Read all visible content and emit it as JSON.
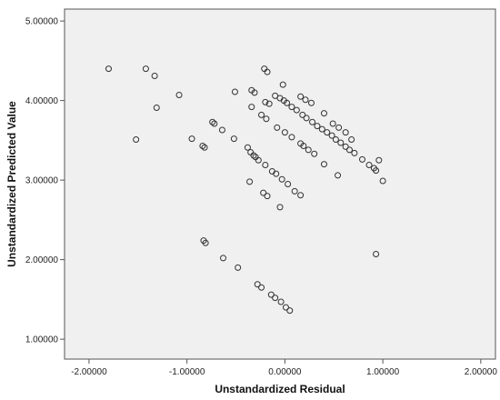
{
  "chart_data": {
    "type": "scatter",
    "xlabel": "Unstandardized Residual",
    "ylabel": "Unstandardized Predicted Value",
    "xlim": [
      -2.25,
      2.15
    ],
    "ylim": [
      0.75,
      5.15
    ],
    "x_ticks": [
      -2,
      -1,
      0,
      1,
      2
    ],
    "y_ticks": [
      1,
      2,
      3,
      4,
      5
    ],
    "x_tick_labels": [
      "-2.00000",
      "-1.00000",
      "0.00000",
      "1.00000",
      "2.00000"
    ],
    "y_tick_labels": [
      "1.00000",
      "2.00000",
      "3.00000",
      "4.00000",
      "5.00000"
    ],
    "grid": false,
    "colors": {
      "plot_background": "#f0f0f0",
      "marker": "#333333",
      "frame": "#555555"
    },
    "series": [
      {
        "points": [
          [
            -1.8,
            4.4
          ],
          [
            -1.42,
            4.4
          ],
          [
            -1.33,
            4.31
          ],
          [
            -1.31,
            3.91
          ],
          [
            -1.08,
            4.07
          ],
          [
            -1.52,
            3.51
          ],
          [
            -0.95,
            3.52
          ],
          [
            -0.84,
            3.43
          ],
          [
            -0.82,
            3.41
          ],
          [
            -0.74,
            3.73
          ],
          [
            -0.72,
            3.71
          ],
          [
            -0.64,
            3.63
          ],
          [
            -0.52,
            3.52
          ],
          [
            -0.38,
            3.41
          ],
          [
            -0.35,
            3.35
          ],
          [
            -0.32,
            3.31
          ],
          [
            -0.3,
            3.29
          ],
          [
            -0.27,
            3.25
          ],
          [
            -0.2,
            3.19
          ],
          [
            -0.13,
            3.11
          ],
          [
            -0.09,
            3.08
          ],
          [
            -0.03,
            3.01
          ],
          [
            0.03,
            2.95
          ],
          [
            0.1,
            2.86
          ],
          [
            0.16,
            2.81
          ],
          [
            -0.36,
            2.98
          ],
          [
            -0.22,
            2.84
          ],
          [
            -0.18,
            2.8
          ],
          [
            -0.05,
            2.66
          ],
          [
            -0.51,
            4.11
          ],
          [
            -0.34,
            4.13
          ],
          [
            -0.31,
            4.1
          ],
          [
            -0.34,
            3.92
          ],
          [
            -0.24,
            3.82
          ],
          [
            -0.19,
            3.77
          ],
          [
            -0.08,
            3.66
          ],
          [
            0.0,
            3.6
          ],
          [
            0.07,
            3.54
          ],
          [
            0.16,
            3.46
          ],
          [
            0.19,
            3.43
          ],
          [
            0.24,
            3.38
          ],
          [
            0.3,
            3.33
          ],
          [
            0.4,
            3.2
          ],
          [
            0.54,
            3.06
          ],
          [
            -0.21,
            4.4
          ],
          [
            -0.18,
            4.36
          ],
          [
            -0.2,
            3.98
          ],
          [
            -0.16,
            3.96
          ],
          [
            -0.1,
            4.06
          ],
          [
            -0.05,
            4.03
          ],
          [
            -0.01,
            4.0
          ],
          [
            0.02,
            3.97
          ],
          [
            0.07,
            3.92
          ],
          [
            0.12,
            3.88
          ],
          [
            0.18,
            3.82
          ],
          [
            0.22,
            3.78
          ],
          [
            0.28,
            3.73
          ],
          [
            0.33,
            3.68
          ],
          [
            0.38,
            3.64
          ],
          [
            0.43,
            3.6
          ],
          [
            0.48,
            3.56
          ],
          [
            0.52,
            3.51
          ],
          [
            0.57,
            3.47
          ],
          [
            0.62,
            3.42
          ],
          [
            0.66,
            3.38
          ],
          [
            0.71,
            3.34
          ],
          [
            0.79,
            3.26
          ],
          [
            0.86,
            3.19
          ],
          [
            0.91,
            3.15
          ],
          [
            0.93,
            3.12
          ],
          [
            1.0,
            2.99
          ],
          [
            -0.02,
            4.2
          ],
          [
            0.16,
            4.05
          ],
          [
            0.21,
            4.01
          ],
          [
            0.27,
            3.97
          ],
          [
            0.4,
            3.84
          ],
          [
            0.49,
            3.71
          ],
          [
            0.55,
            3.66
          ],
          [
            0.62,
            3.6
          ],
          [
            0.68,
            3.51
          ],
          [
            0.96,
            3.25
          ],
          [
            -0.83,
            2.24
          ],
          [
            -0.81,
            2.21
          ],
          [
            -0.63,
            2.02
          ],
          [
            -0.48,
            1.9
          ],
          [
            -0.28,
            1.69
          ],
          [
            -0.24,
            1.65
          ],
          [
            -0.14,
            1.56
          ],
          [
            -0.1,
            1.52
          ],
          [
            -0.04,
            1.47
          ],
          [
            0.01,
            1.4
          ],
          [
            0.05,
            1.36
          ],
          [
            0.93,
            2.07
          ]
        ]
      }
    ]
  }
}
